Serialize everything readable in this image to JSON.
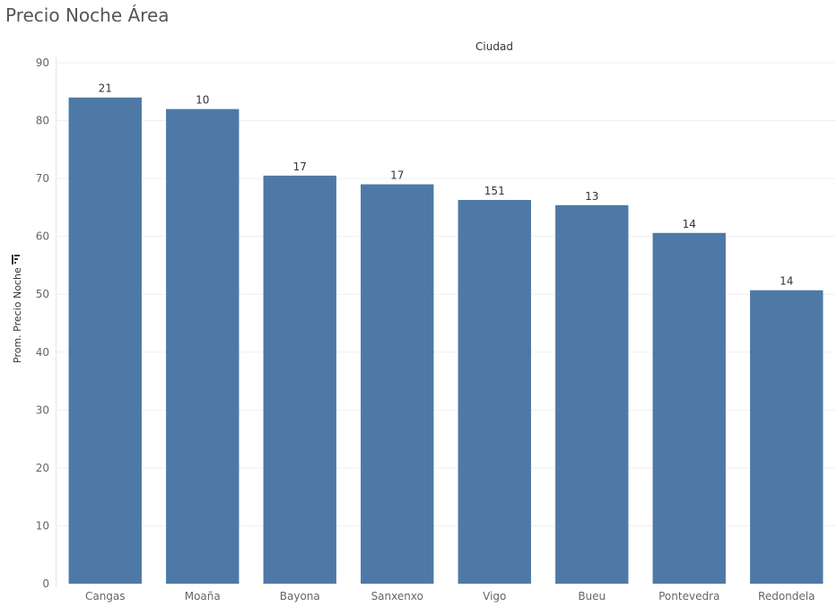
{
  "chart_data": {
    "type": "bar",
    "title": "Precio Noche Área",
    "header": "Ciudad",
    "ylabel": "Prom. Precio Noche",
    "categories": [
      "Cangas",
      "Moaña",
      "Bayona",
      "Sanxenxo",
      "Vigo",
      "Bueu",
      "Pontevedra",
      "Redondela"
    ],
    "values": [
      84,
      82,
      70.5,
      69,
      66.3,
      65.4,
      60.6,
      50.7
    ],
    "labels": [
      "21",
      "10",
      "17",
      "17",
      "151",
      "13",
      "14",
      "14"
    ],
    "ylim": [
      0,
      90
    ],
    "yticks": [
      0,
      10,
      20,
      30,
      40,
      50,
      60,
      70,
      80,
      90
    ],
    "grid": true,
    "colors": {
      "bar": "#4e79a7",
      "grid": "#efefef",
      "tick_text": "#666666",
      "label_text": "#333333"
    },
    "icons": {
      "sort": "sort-descending-icon"
    }
  }
}
